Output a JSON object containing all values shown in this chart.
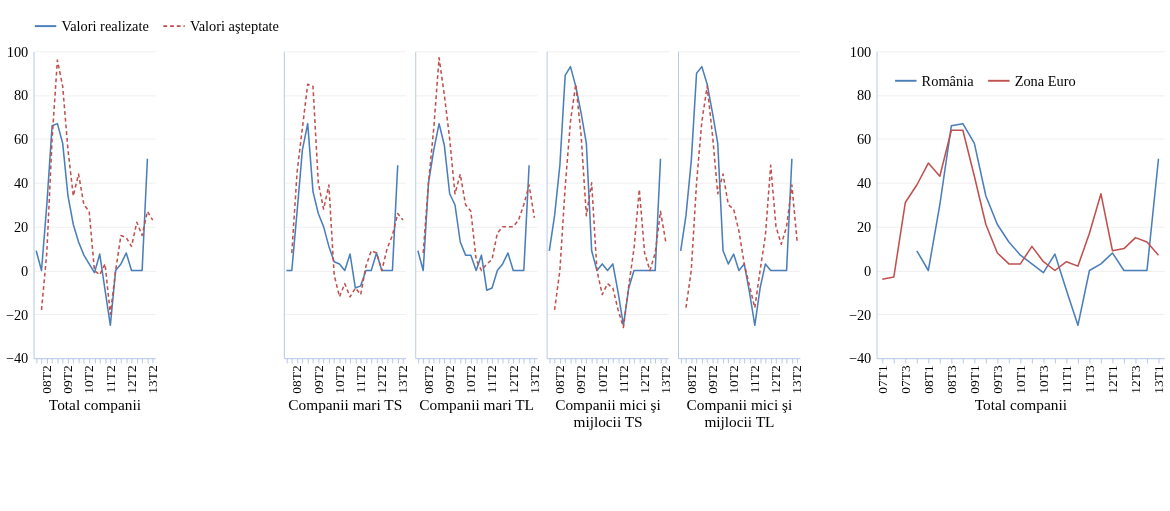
{
  "chart_data": [
    {
      "type": "line",
      "xlabel": "Total companii",
      "categories": [
        null,
        null,
        "08T2",
        null,
        null,
        null,
        "09T2",
        null,
        null,
        null,
        "10T2",
        null,
        null,
        null,
        "11T2",
        null,
        null,
        null,
        "12T2",
        null,
        null,
        null,
        "13T2"
      ],
      "ylim": [
        -40,
        100
      ],
      "yticks": [
        -40,
        -20,
        0,
        20,
        40,
        60,
        80,
        100
      ],
      "grid": "y",
      "legend": "top",
      "series": [
        {
          "name": "Valori realizate",
          "color": "#4a7ebb",
          "line_style": "solid",
          "values": [
            9,
            0,
            30,
            66,
            67,
            58,
            34,
            21,
            13,
            7,
            3,
            -1,
            7.5,
            -9,
            -25,
            0,
            3,
            8,
            0,
            0,
            0,
            51,
            null
          ]
        },
        {
          "name": "Valori aşteptate",
          "color": "#c0504d",
          "line_style": "dashed",
          "values": [
            null,
            -18,
            8,
            60,
            96,
            84,
            55,
            34,
            44,
            30,
            27,
            0,
            -2,
            3,
            -20,
            0,
            16,
            15,
            11,
            22,
            16,
            27,
            23
          ]
        }
      ]
    },
    {
      "type": "line",
      "xlabel": "Companii mari TS",
      "tick_labels": "x",
      "categories": [
        null,
        null,
        "08T2",
        null,
        null,
        null,
        "09T2",
        null,
        null,
        null,
        "10T2",
        null,
        null,
        null,
        "11T2",
        null,
        null,
        null,
        "12T2",
        null,
        null,
        null,
        "13T2"
      ],
      "ylim": [
        -40,
        100
      ],
      "yticks": [
        -40,
        -20,
        0,
        20,
        40,
        60,
        80,
        100
      ],
      "grid": "y",
      "series": [
        {
          "color": "#4a7ebb",
          "line_style": "solid",
          "values": [
            0,
            0,
            27,
            55,
            67,
            36,
            26,
            20,
            11,
            4,
            3,
            0,
            7.5,
            -8,
            -7,
            0,
            0,
            8,
            0,
            0,
            0,
            48,
            null
          ]
        },
        {
          "color": "#c0504d",
          "line_style": "dashed",
          "values": [
            null,
            8,
            45,
            65,
            85,
            84,
            40,
            28,
            39,
            -2,
            -12,
            -6,
            -12,
            -8,
            -11,
            2,
            9,
            8,
            0,
            10,
            16,
            26,
            23
          ]
        }
      ]
    },
    {
      "type": "line",
      "xlabel": "Companii mari TL",
      "tick_labels": "x",
      "categories": [
        null,
        null,
        "08T2",
        null,
        null,
        null,
        "09T2",
        null,
        null,
        null,
        "10T2",
        null,
        null,
        null,
        "11T2",
        null,
        null,
        null,
        "12T2",
        null,
        null,
        null,
        "13T2"
      ],
      "ylim": [
        -40,
        100
      ],
      "yticks": [
        -40,
        -20,
        0,
        20,
        40,
        60,
        80,
        100
      ],
      "grid": "y",
      "series": [
        {
          "color": "#4a7ebb",
          "line_style": "solid",
          "values": [
            9,
            0,
            40,
            55,
            67,
            57,
            35,
            30,
            13,
            7,
            7,
            0,
            7,
            -9,
            -8,
            0,
            3,
            8,
            0,
            0,
            0,
            48,
            null
          ]
        },
        {
          "color": "#c0504d",
          "line_style": "dashed",
          "values": [
            null,
            8,
            40,
            65,
            97,
            80,
            60,
            35,
            44,
            30,
            27,
            5,
            0,
            3,
            5,
            17,
            20,
            20,
            20,
            23,
            30,
            39,
            24
          ]
        }
      ]
    },
    {
      "type": "line",
      "xlabel": "Companii mici şi mijlocii TS",
      "tick_labels": "x",
      "categories": [
        null,
        null,
        "08T2",
        null,
        null,
        null,
        "09T2",
        null,
        null,
        null,
        "10T2",
        null,
        null,
        null,
        "11T2",
        null,
        null,
        null,
        "12T2",
        null,
        null,
        null,
        "13T2"
      ],
      "ylim": [
        -40,
        100
      ],
      "yticks": [
        -40,
        -20,
        0,
        20,
        40,
        60,
        80,
        100
      ],
      "grid": "y",
      "series": [
        {
          "color": "#4a7ebb",
          "line_style": "solid",
          "values": [
            9,
            25,
            48,
            89,
            93,
            84,
            72,
            58,
            9,
            0,
            3,
            0,
            3,
            -10,
            -25,
            -8,
            0,
            0,
            0,
            0,
            0,
            51,
            null
          ]
        },
        {
          "color": "#c0504d",
          "line_style": "dashed",
          "values": [
            null,
            -18,
            0,
            38,
            68,
            85,
            62,
            25,
            40,
            0,
            -11,
            -6,
            -8,
            -18,
            -26,
            -7,
            10,
            37,
            8,
            0,
            8,
            27,
            13
          ]
        }
      ]
    },
    {
      "type": "line",
      "xlabel": "Companii mici şi mijlocii TL",
      "tick_labels": "x",
      "categories": [
        null,
        null,
        "08T2",
        null,
        null,
        null,
        "09T2",
        null,
        null,
        null,
        "10T2",
        null,
        null,
        null,
        "11T2",
        null,
        null,
        null,
        "12T2",
        null,
        null,
        null,
        "13T2"
      ],
      "ylim": [
        -40,
        100
      ],
      "yticks": [
        -40,
        -20,
        0,
        20,
        40,
        60,
        80,
        100
      ],
      "grid": "y",
      "series": [
        {
          "color": "#4a7ebb",
          "line_style": "solid",
          "values": [
            9,
            25,
            50,
            90,
            93,
            85,
            72,
            58,
            9,
            3,
            7.5,
            0,
            3,
            -10,
            -25,
            -8,
            3,
            0,
            0,
            0,
            0,
            51,
            null
          ]
        },
        {
          "color": "#c0504d",
          "line_style": "dashed",
          "values": [
            null,
            -17,
            0,
            40,
            68,
            84,
            62,
            35,
            44,
            30,
            28,
            18,
            3,
            -7,
            -17,
            0,
            16,
            48,
            20,
            12,
            20,
            39,
            13
          ]
        }
      ]
    },
    {
      "type": "line",
      "xlabel": "Total companii",
      "categories": [
        "07T1",
        null,
        "07T3",
        null,
        "08T1",
        null,
        "08T3",
        null,
        "09T1",
        null,
        "09T3",
        null,
        "10T1",
        null,
        "10T3",
        null,
        "11T1",
        null,
        "11T3",
        null,
        "12T1",
        null,
        "12T3",
        null,
        "13T1"
      ],
      "ylim": [
        -40,
        100
      ],
      "yticks": [
        -40,
        -20,
        0,
        20,
        40,
        60,
        80,
        100
      ],
      "grid": "y",
      "legend": "top left",
      "series": [
        {
          "name": "România",
          "color": "#4a7ebb",
          "line_style": "solid",
          "values": [
            null,
            null,
            null,
            9,
            0,
            30,
            66,
            67,
            58,
            34,
            21,
            13,
            7,
            3,
            -1,
            7.5,
            -9,
            -25,
            0,
            3,
            8,
            0,
            0,
            0,
            51
          ]
        },
        {
          "name": "Zona Euro",
          "color": "#c0504d",
          "line_style": "solid",
          "values": [
            -4,
            -3,
            31,
            39,
            49,
            43,
            64,
            64,
            43,
            21,
            8,
            3,
            3,
            11,
            4,
            0,
            4,
            2,
            17,
            35,
            9,
            10,
            15,
            13,
            7
          ]
        }
      ]
    }
  ]
}
